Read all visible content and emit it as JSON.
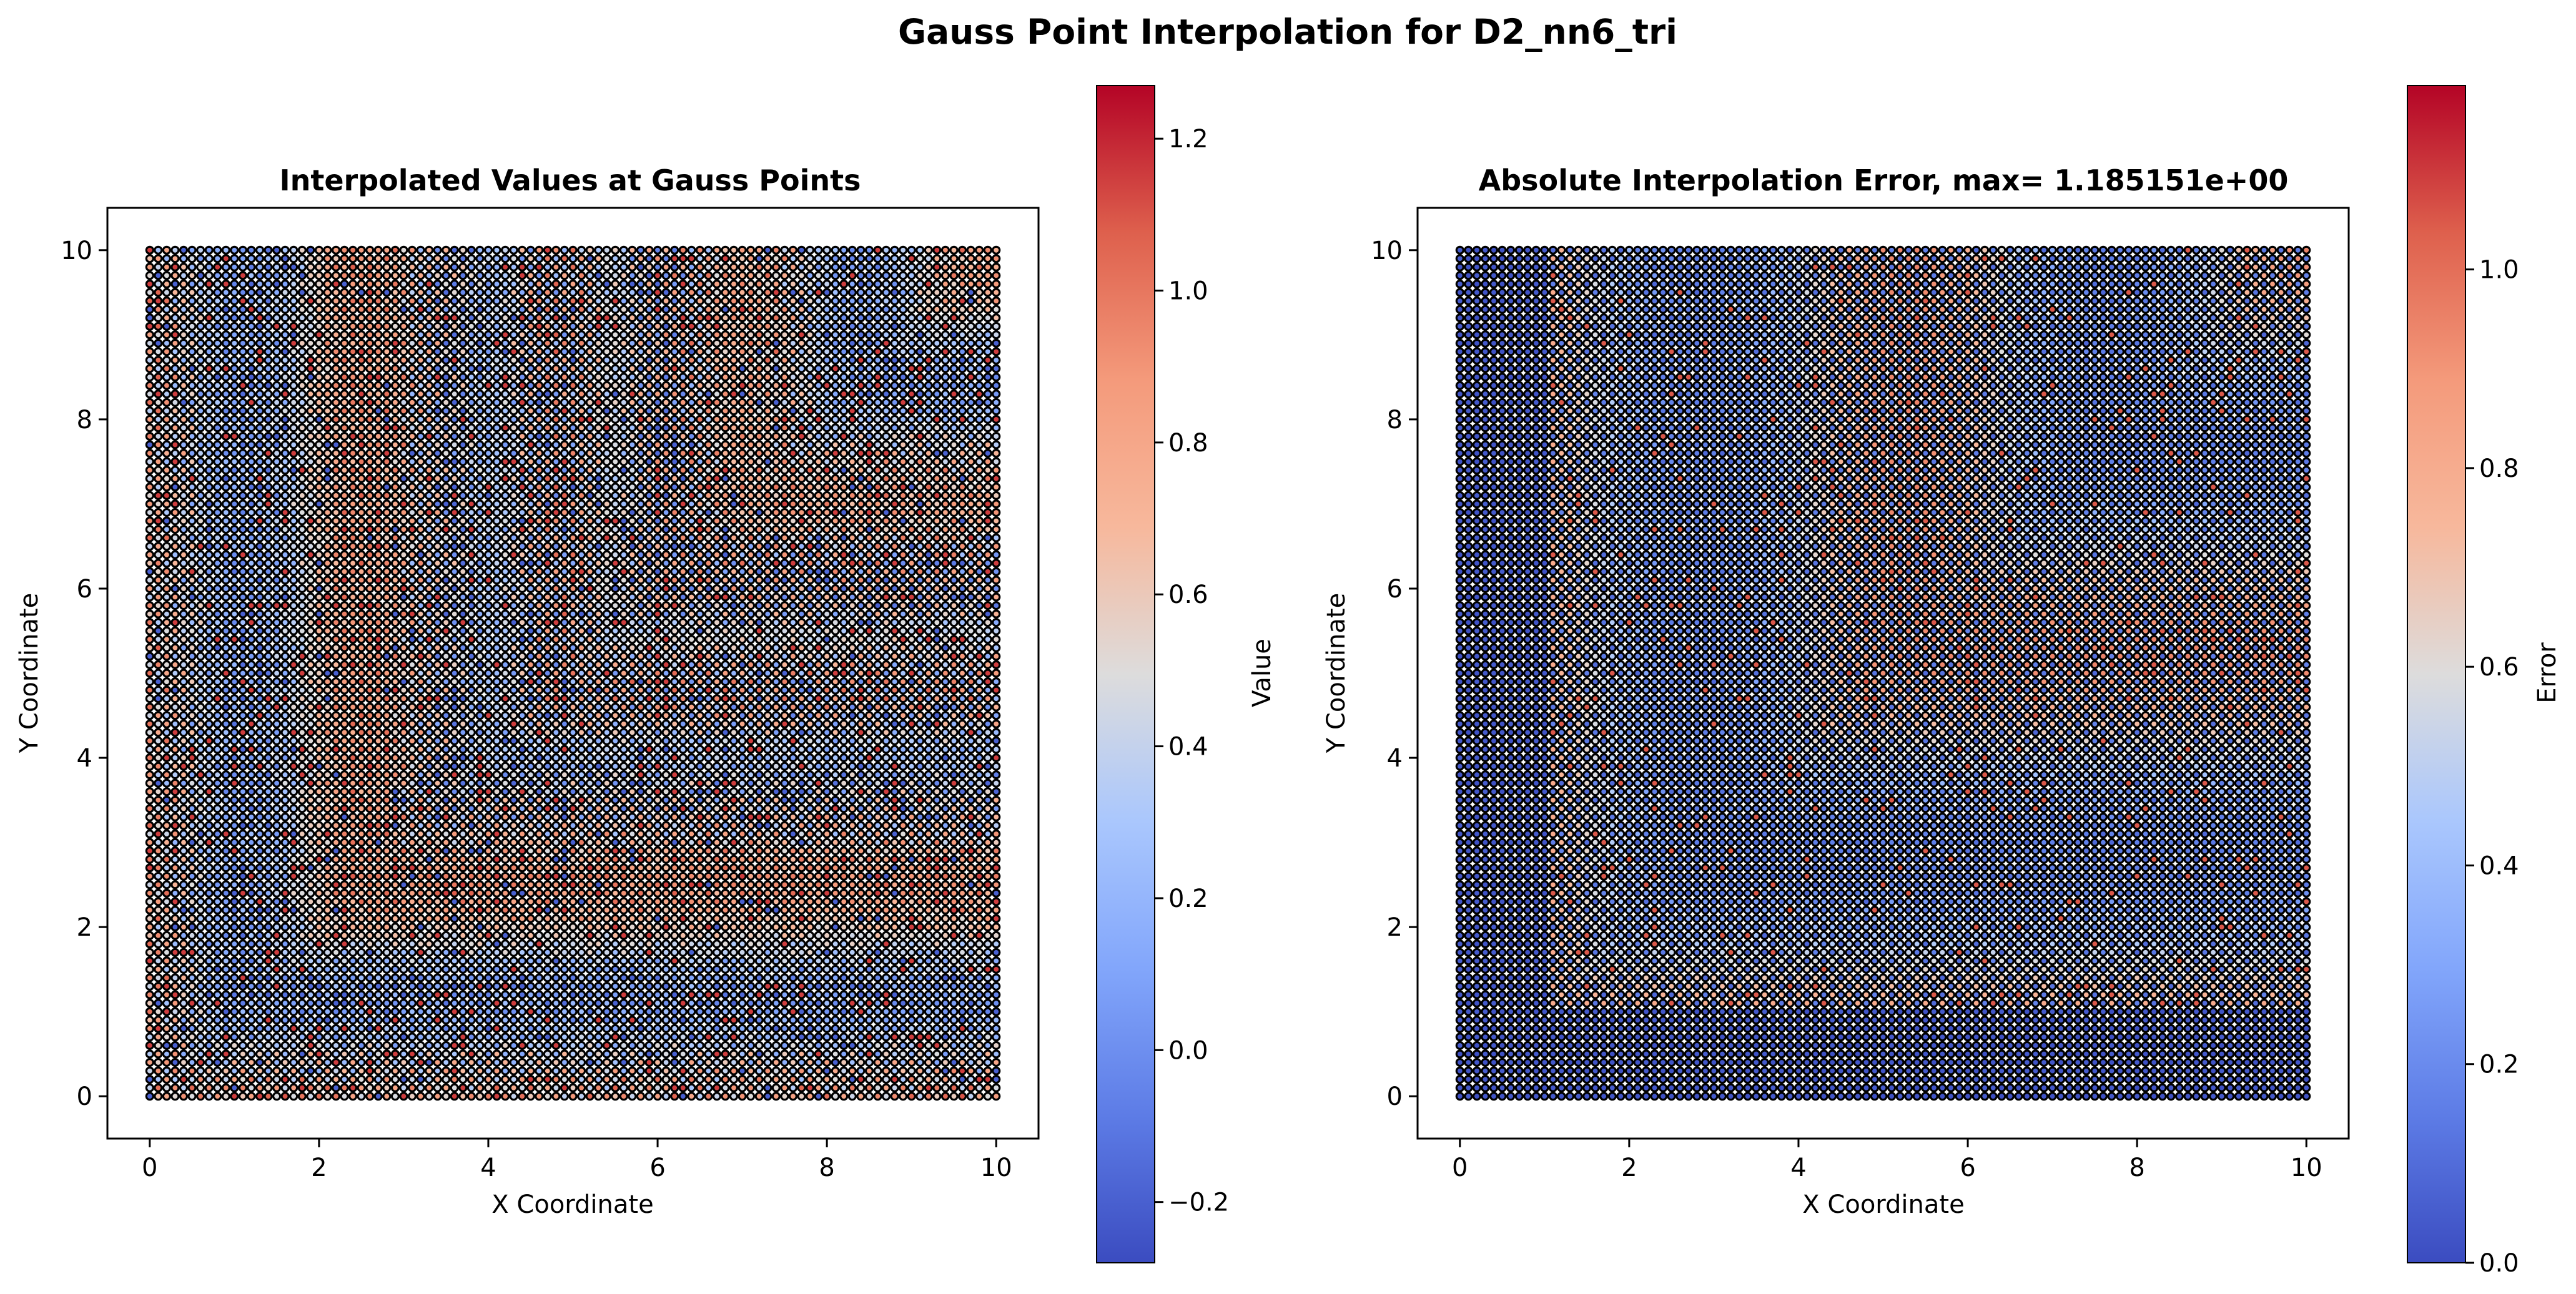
{
  "figure": {
    "title": "Gauss Point Interpolation for D2_nn6_tri"
  },
  "chart_data": [
    {
      "type": "scatter",
      "title": "Interpolated Values at Gauss Points",
      "xlabel": "X Coordinate",
      "ylabel": "Y Coordinate",
      "xlim": [
        -0.5,
        10.5
      ],
      "ylim": [
        -0.5,
        10.5
      ],
      "xticks": [
        0,
        2,
        4,
        6,
        8,
        10
      ],
      "yticks": [
        0,
        2,
        4,
        6,
        8,
        10
      ],
      "grid": false,
      "colormap": "coolwarm",
      "marker_edgecolor": "#000000",
      "grid_points": {
        "x_range": [
          0,
          10
        ],
        "y_range": [
          0,
          10
        ],
        "nx": 101,
        "ny": 101
      },
      "field": "value",
      "colorbar": {
        "label": "Value",
        "range": [
          -0.28,
          1.27
        ],
        "ticks": [
          -0.2,
          0.0,
          0.2,
          0.4,
          0.6,
          0.8,
          1.0,
          1.2
        ],
        "tick_labels": [
          "−0.2",
          "0.0",
          "0.2",
          "0.4",
          "0.6",
          "0.8",
          "1.0",
          "1.2"
        ]
      }
    },
    {
      "type": "scatter",
      "title": "Absolute Interpolation Error, max= 1.185151e+00",
      "xlabel": "X Coordinate",
      "ylabel": "Y Coordinate",
      "xlim": [
        -0.5,
        10.5
      ],
      "ylim": [
        -0.5,
        10.5
      ],
      "xticks": [
        0,
        2,
        4,
        6,
        8,
        10
      ],
      "yticks": [
        0,
        2,
        4,
        6,
        8,
        10
      ],
      "grid": false,
      "colormap": "coolwarm",
      "marker_edgecolor": "#000000",
      "grid_points": {
        "x_range": [
          0,
          10
        ],
        "y_range": [
          0,
          10
        ],
        "nx": 101,
        "ny": 101
      },
      "field": "error",
      "max_error": 1.185151,
      "colorbar": {
        "label": "Error",
        "range": [
          0.0,
          1.185151
        ],
        "ticks": [
          0.0,
          0.2,
          0.4,
          0.6,
          0.8,
          1.0
        ],
        "tick_labels": [
          "0.0",
          "0.2",
          "0.4",
          "0.6",
          "0.8",
          "1.0"
        ]
      }
    }
  ]
}
